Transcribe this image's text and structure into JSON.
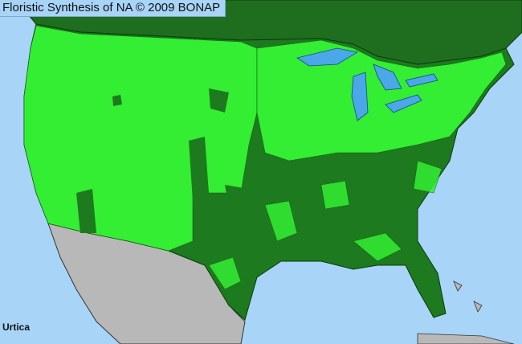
{
  "header": {
    "title": "Floristic Synthesis of NA © 2009 BONAP"
  },
  "map": {
    "taxon": "Urtica",
    "colors": {
      "water": "#a8d4f8",
      "lakes": "#4aa8e8",
      "present_county": "#33ee33",
      "state_present": "#1e7a1e",
      "canada": "#1f6e1f",
      "mexico": "#b8b8b8"
    }
  }
}
